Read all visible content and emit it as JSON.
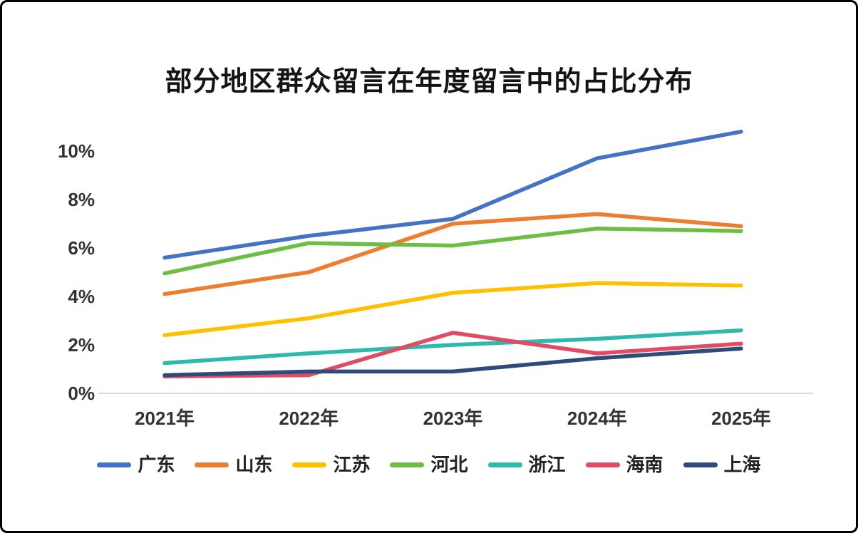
{
  "chart_data": {
    "type": "line",
    "title": "部分地区群众留言在年度留言中的占比分布",
    "categories": [
      "2021年",
      "2022年",
      "2023年",
      "2024年",
      "2025年"
    ],
    "series": [
      {
        "name": "广东",
        "color": "#4472C4",
        "values": [
          5.6,
          6.5,
          7.2,
          9.7,
          10.8
        ]
      },
      {
        "name": "山东",
        "color": "#ED7D31",
        "values": [
          4.1,
          5.0,
          7.0,
          7.4,
          6.9
        ]
      },
      {
        "name": "江苏",
        "color": "#FFC000",
        "values": [
          2.4,
          3.1,
          4.15,
          4.55,
          4.45
        ]
      },
      {
        "name": "河北",
        "color": "#6CBE45",
        "values": [
          4.95,
          6.2,
          6.1,
          6.8,
          6.7
        ]
      },
      {
        "name": "浙江",
        "color": "#2DB9AC",
        "values": [
          1.25,
          1.65,
          2.0,
          2.25,
          2.6
        ]
      },
      {
        "name": "海南",
        "color": "#E04C63",
        "values": [
          0.7,
          0.75,
          2.5,
          1.65,
          2.05
        ]
      },
      {
        "name": "上海",
        "color": "#2E4B7C",
        "values": [
          0.75,
          0.9,
          0.9,
          1.45,
          1.85
        ]
      }
    ],
    "yticks": [
      "0%",
      "2%",
      "4%",
      "6%",
      "8%",
      "10%"
    ],
    "ylim": [
      0,
      11
    ],
    "grid": false,
    "legend_position": "bottom",
    "axis_color": "#d9d9d9",
    "text_color": "#333333"
  }
}
